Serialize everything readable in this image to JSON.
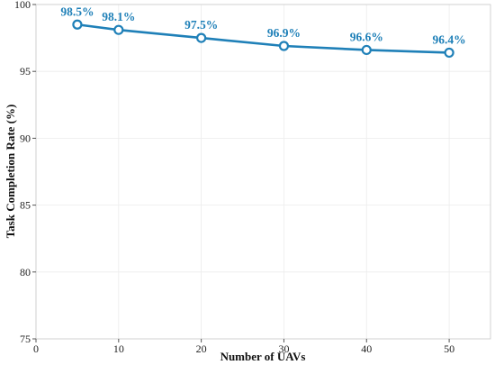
{
  "chart_data": {
    "type": "line",
    "title": "",
    "xlabel": "Number of UAVs",
    "ylabel": "Task Completion Rate (%)",
    "xlim": [
      0,
      55
    ],
    "ylim": [
      75,
      100
    ],
    "xticks": [
      0,
      10,
      20,
      30,
      40,
      50
    ],
    "yticks": [
      75,
      80,
      85,
      90,
      95,
      100
    ],
    "grid": true,
    "series": [
      {
        "x": [
          5,
          10,
          20,
          30,
          40,
          50
        ],
        "y": [
          98.5,
          98.1,
          97.5,
          96.9,
          96.6,
          96.4
        ],
        "labels": [
          "98.5%",
          "98.1%",
          "97.5%",
          "96.9%",
          "96.6%",
          "96.4%"
        ],
        "color": "#1f80b8"
      }
    ]
  }
}
